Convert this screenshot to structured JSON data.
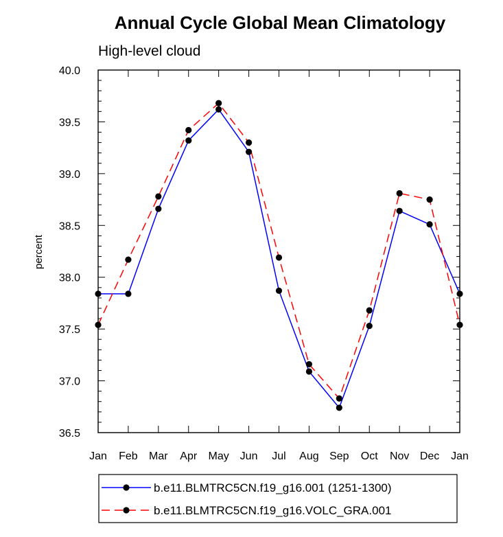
{
  "chart_data": {
    "type": "line",
    "title": "Annual Cycle Global Mean Climatology",
    "subtitle": "High-level cloud",
    "xlabel": "",
    "ylabel": "percent",
    "categories": [
      "Jan",
      "Feb",
      "Mar",
      "Apr",
      "May",
      "Jun",
      "Jul",
      "Aug",
      "Sep",
      "Oct",
      "Nov",
      "Dec",
      "Jan"
    ],
    "ylim": [
      36.5,
      40.0
    ],
    "yticks": [
      "36.5",
      "37.0",
      "37.5",
      "38.0",
      "38.5",
      "39.0",
      "39.5",
      "40.0"
    ],
    "grid": false,
    "legend_position": "bottom",
    "series": [
      {
        "name": "b.e11.BLMTRC5CN.f19_g16.001 (1251-1300)",
        "color": "#0000ff",
        "dash": "solid",
        "values": [
          37.84,
          37.84,
          38.66,
          39.32,
          39.62,
          39.21,
          37.87,
          37.09,
          36.74,
          37.53,
          38.64,
          38.51,
          37.84
        ]
      },
      {
        "name": "b.e11.BLMTRC5CN.f19_g16.VOLC_GRA.001",
        "color": "#ff0000",
        "dash": "dashed",
        "values": [
          37.54,
          38.17,
          38.78,
          39.42,
          39.68,
          39.3,
          38.19,
          37.16,
          36.83,
          37.68,
          38.81,
          38.75,
          37.54
        ]
      }
    ]
  }
}
